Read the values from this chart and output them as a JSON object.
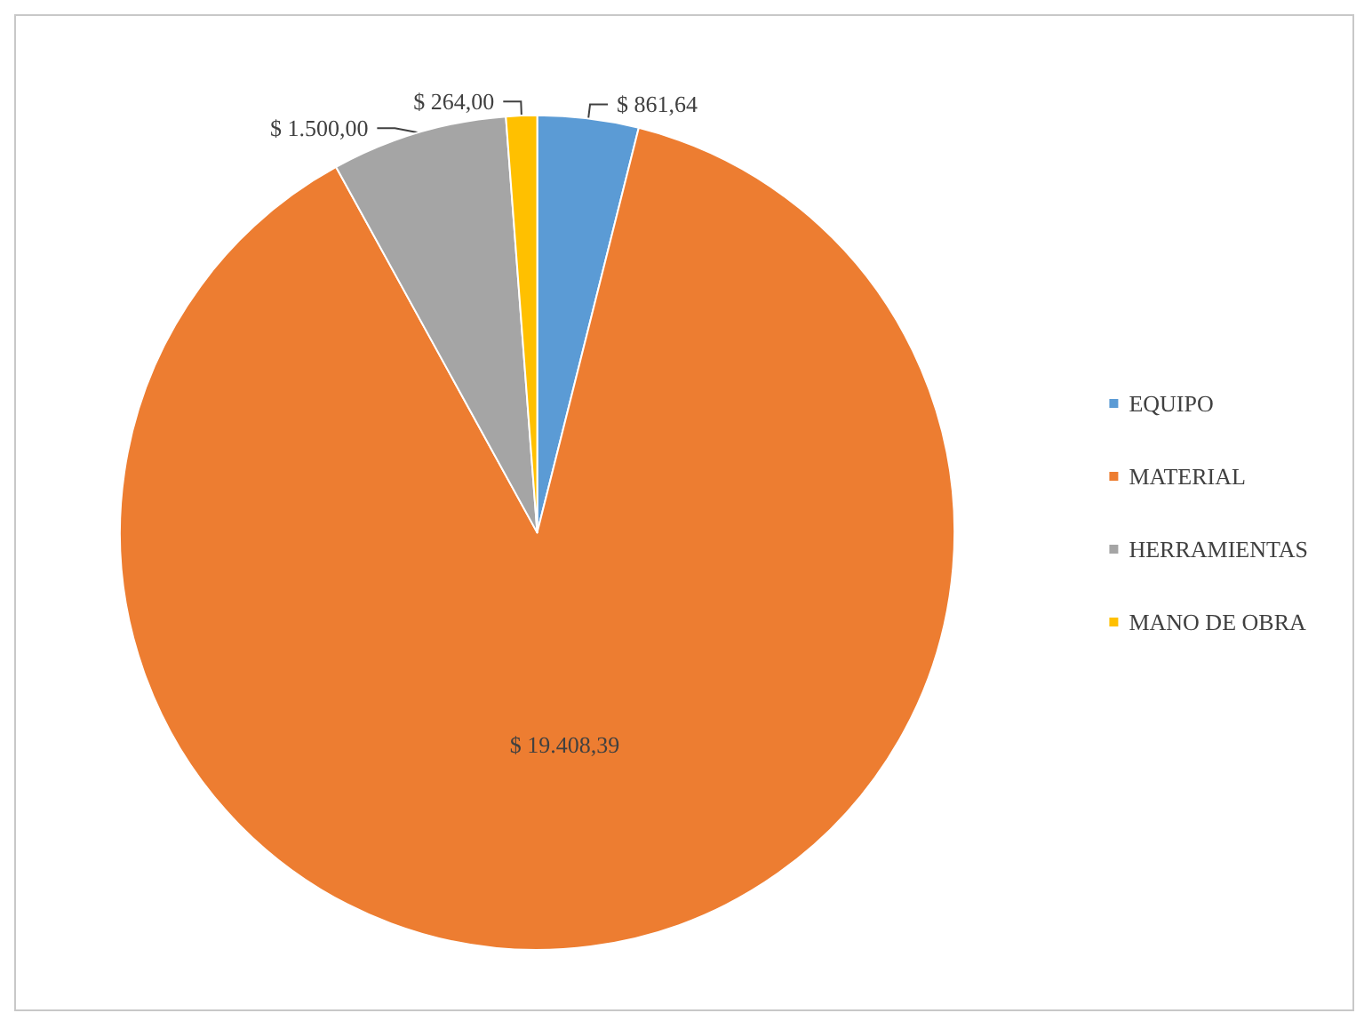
{
  "chart_data": {
    "type": "pie",
    "categories": [
      "EQUIPO",
      "MATERIAL",
      "HERRAMIENTAS",
      "MANO DE OBRA"
    ],
    "values": [
      861.64,
      19408.39,
      1500.0,
      264.0
    ],
    "value_labels": [
      "$ 861,64",
      "$ 19.408,39",
      "$ 1.500,00",
      "$ 264,00"
    ],
    "colors": [
      "#5b9bd5",
      "#ed7d31",
      "#a5a5a5",
      "#ffc000"
    ],
    "legend": "right"
  }
}
